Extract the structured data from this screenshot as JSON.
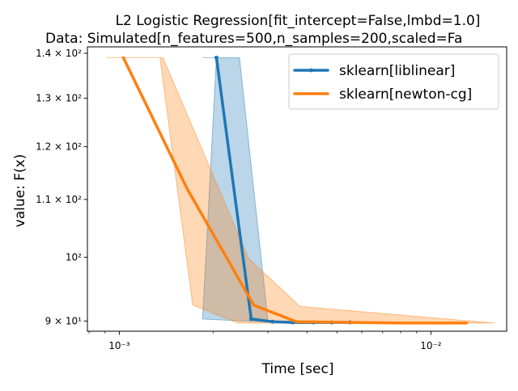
{
  "chart_data": {
    "type": "line",
    "title": "L2 Logistic Regression[fit_intercept=False,lmbd=1.0]",
    "subtitle": "Data: Simulated[n_features=500,n_samples=200,scaled=Fa",
    "xlabel": "Time [sec]",
    "ylabel": "value: F(x)",
    "xscale": "log",
    "yscale": "log",
    "xlim": [
      0.00079,
      0.0175
    ],
    "ylim": [
      88.5,
      141.5
    ],
    "xticks": [
      {
        "value": 0.001,
        "label": "10⁻³"
      },
      {
        "value": 0.01,
        "label": "10⁻²"
      }
    ],
    "yticks": [
      {
        "value": 90,
        "label": "9 × 10¹"
      },
      {
        "value": 100,
        "label": "10²"
      },
      {
        "value": 110,
        "label": "1.1 × 10²"
      },
      {
        "value": 120,
        "label": "1.2 × 10²"
      },
      {
        "value": 130,
        "label": "1.3 × 10²"
      },
      {
        "value": 140,
        "label": "1.4 × 10²"
      }
    ],
    "legend_position": "top-right",
    "grid": false,
    "series": [
      {
        "name": "sklearn[liblinear]",
        "color": "#1f77b4",
        "marker": "dot",
        "x": [
          0.00205,
          0.00265,
          0.0031,
          0.0036,
          0.0042,
          0.0048,
          0.0055
        ],
        "y": [
          139.0,
          90.3,
          89.9,
          89.8,
          89.8,
          89.8,
          89.8
        ],
        "band_upper": {
          "x": [
            0.00185,
            0.0023
          ],
          "y": [
            139.0,
            139.0
          ]
        },
        "band_lower": {
          "x": [
            0.00185,
            0.0032,
            0.0042,
            0.0055
          ],
          "y": [
            90.3,
            89.8,
            89.8,
            89.8
          ]
        },
        "band_left": {
          "x": [
            0.00185,
            0.0023
          ],
          "y": [
            139.0,
            139.0
          ]
        },
        "band_polygon": [
          [
            0.00185,
            139.0
          ],
          [
            0.0023,
            139.0
          ],
          [
            0.00243,
            139.0
          ],
          [
            0.003,
            90.0
          ],
          [
            0.0055,
            89.8
          ],
          [
            0.0032,
            89.8
          ],
          [
            0.00185,
            90.3
          ],
          [
            0.00205,
            139.0
          ]
        ]
      },
      {
        "name": "sklearn[newton-cg]",
        "color": "#ff7f0e",
        "marker": "none",
        "x": [
          0.00103,
          0.00165,
          0.0027,
          0.0037,
          0.0055,
          0.008,
          0.011,
          0.013
        ],
        "y": [
          139.0,
          112.0,
          92.4,
          89.9,
          89.8,
          89.7,
          89.7,
          89.7
        ],
        "band_polygon": [
          [
            0.00091,
            139.0
          ],
          [
            0.00135,
            139.0
          ],
          [
            0.00172,
            92.4
          ],
          [
            0.0024,
            89.7
          ],
          [
            0.016,
            89.7
          ],
          [
            0.0038,
            92.2
          ],
          [
            0.0026,
            99.8
          ],
          [
            0.00138,
            139.0
          ],
          [
            0.00103,
            139.0
          ]
        ]
      }
    ]
  }
}
